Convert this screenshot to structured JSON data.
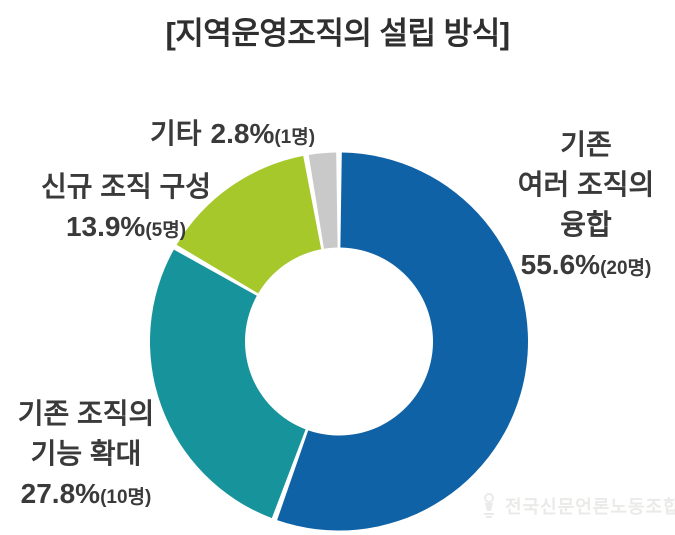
{
  "title": "[지역운영조직의 설립 방식]",
  "chart_data": {
    "type": "pie",
    "subtype": "donut",
    "title": "지역운영조직의 설립 방식",
    "labels": [
      "기존 여러 조직의 융합",
      "기존 조직의 기능 확대",
      "신규 조직 구성",
      "기타"
    ],
    "values": [
      55.6,
      27.8,
      13.9,
      2.8
    ],
    "counts": [
      20,
      10,
      5,
      1
    ],
    "count_unit": "명",
    "colors": [
      "#1062A7",
      "#17939B",
      "#A6C82A",
      "#C9C9C9"
    ],
    "ids": [
      "merge",
      "expand",
      "new",
      "etc"
    ],
    "start_angle_deg": 0,
    "direction": "clockwise",
    "donut_hole_ratio": 0.5,
    "legend": "none",
    "value_format": "percent"
  },
  "labels": {
    "merge": {
      "line1": "기존",
      "line2": "여러 조직의",
      "line3": "융합",
      "pct": "55.6%",
      "count": "(20명)"
    },
    "expand": {
      "line1": "기존 조직의",
      "line2": "기능 확대",
      "pct": "27.8%",
      "count": "(10명)"
    },
    "new": {
      "line1": "신규 조직 구성",
      "pct": "13.9%",
      "count": "(5명)"
    },
    "etc": {
      "name": "기타",
      "pct": "2.8%",
      "count": "(1명)"
    }
  },
  "watermark": {
    "text": "전국신문언론노동조합"
  }
}
